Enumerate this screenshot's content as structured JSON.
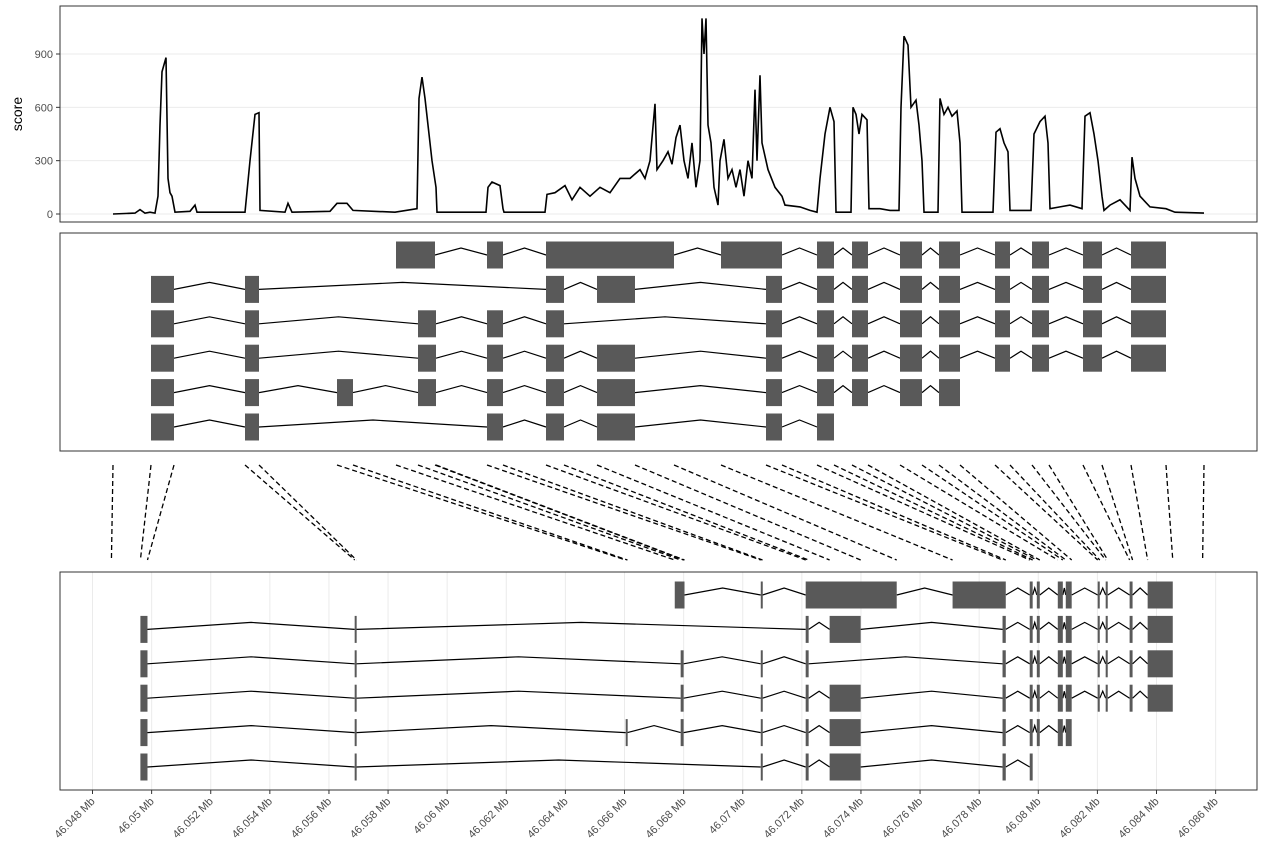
{
  "chart_data": [
    {
      "type": "line",
      "ylabel": "score",
      "color": "#000000",
      "grid": true,
      "xlim": [
        0,
        119.7
      ],
      "ylim": [
        -45,
        1170
      ],
      "yticks": [
        0,
        300,
        600,
        900
      ],
      "x": [
        5.3,
        7.5,
        8,
        8.5,
        9,
        9.5,
        9.8,
        10,
        10.2,
        10.6,
        10.8,
        11,
        11.2,
        11.5,
        13,
        13.5,
        13.7,
        18,
        18.5,
        19,
        19.5,
        19.9,
        20,
        22.5,
        22.8,
        23.2,
        27,
        27.7,
        28.7,
        29.3,
        33.5,
        35.7,
        35.9,
        36.2,
        36.5,
        37.2,
        37.6,
        37.7,
        42.6,
        42.8,
        43.2,
        44,
        44.3,
        44.4,
        48.5,
        48.7,
        49.5,
        50.5,
        51.2,
        52,
        53,
        54,
        55,
        56,
        57,
        58,
        58.5,
        59,
        59.5,
        59.7,
        60.3,
        60.8,
        61.2,
        61.6,
        62,
        62.4,
        62.8,
        63.2,
        63.6,
        64,
        64.2,
        64.4,
        64.6,
        64.8,
        65.1,
        65.4,
        65.8,
        66,
        66.4,
        66.8,
        67.2,
        67.6,
        68,
        68.4,
        68.8,
        69.2,
        69.5,
        69.7,
        70,
        70.2,
        70.8,
        71.5,
        72.2,
        72.5,
        74,
        75,
        75.7,
        76,
        76.5,
        77,
        77.4,
        77.6,
        79.1,
        79.3,
        79.6,
        79.9,
        80.2,
        80.7,
        80.9,
        82,
        83,
        83.9,
        84.1,
        84.4,
        84.8,
        85.1,
        85.6,
        85.9,
        86.2,
        86.4,
        87.8,
        88,
        88.4,
        88.8,
        89.2,
        89.7,
        90,
        90.2,
        93.3,
        93.6,
        94,
        94.4,
        94.8,
        95,
        97.1,
        97.4,
        98,
        98.5,
        98.8,
        99,
        100,
        101,
        102.2,
        102.5,
        103,
        103.4,
        103.8,
        104.2,
        104.4,
        105,
        106,
        107,
        107.2,
        107.5,
        108,
        109,
        110.6,
        111.5,
        114.4
      ],
      "values": [
        0,
        5,
        25,
        5,
        10,
        5,
        100,
        500,
        800,
        880,
        200,
        120,
        100,
        10,
        15,
        50,
        10,
        10,
        10,
        300,
        560,
        570,
        20,
        10,
        60,
        10,
        15,
        60,
        60,
        20,
        10,
        30,
        650,
        770,
        650,
        300,
        150,
        10,
        10,
        150,
        180,
        160,
        30,
        10,
        10,
        110,
        120,
        160,
        80,
        150,
        100,
        150,
        120,
        200,
        200,
        250,
        200,
        300,
        620,
        250,
        300,
        350,
        280,
        430,
        500,
        300,
        200,
        400,
        150,
        300,
        1100,
        900,
        1100,
        500,
        400,
        150,
        50,
        300,
        420,
        200,
        250,
        150,
        250,
        100,
        300,
        200,
        700,
        300,
        780,
        400,
        250,
        150,
        100,
        50,
        40,
        20,
        10,
        200,
        450,
        600,
        520,
        10,
        10,
        600,
        560,
        450,
        560,
        530,
        30,
        30,
        20,
        20,
        600,
        1000,
        950,
        600,
        640,
        500,
        300,
        10,
        10,
        650,
        560,
        600,
        550,
        580,
        400,
        10,
        10,
        460,
        480,
        400,
        350,
        20,
        20,
        450,
        520,
        550,
        400,
        30,
        40,
        50,
        30,
        550,
        570,
        450,
        300,
        100,
        20,
        50,
        80,
        20,
        320,
        200,
        100,
        40,
        30,
        10,
        5
      ]
    },
    {
      "type": "gene_model",
      "color": "#595959",
      "xlim": [
        0,
        119.7
      ],
      "transcripts": [
        [
          [
            33.6,
            37.5
          ],
          [
            42.7,
            44.3
          ],
          [
            48.6,
            61.4
          ],
          [
            66.1,
            72.2
          ],
          [
            75.7,
            77.4
          ],
          [
            79.2,
            80.8
          ],
          [
            84,
            86.2
          ],
          [
            87.9,
            90
          ],
          [
            93.5,
            95
          ],
          [
            97.2,
            98.9
          ],
          [
            102.3,
            104.2
          ],
          [
            107.1,
            110.6
          ]
        ],
        [
          [
            9.1,
            11.4
          ],
          [
            18.5,
            19.9
          ],
          [
            48.6,
            50.4
          ],
          [
            53.7,
            57.5
          ],
          [
            70.6,
            72.2
          ],
          [
            75.7,
            77.4
          ],
          [
            79.2,
            80.8
          ],
          [
            84,
            86.2
          ],
          [
            87.9,
            90
          ],
          [
            93.5,
            95
          ],
          [
            97.2,
            98.9
          ],
          [
            102.3,
            104.2
          ],
          [
            107.1,
            110.6
          ]
        ],
        [
          [
            9.1,
            11.4
          ],
          [
            18.5,
            19.9
          ],
          [
            35.8,
            37.6
          ],
          [
            42.7,
            44.3
          ],
          [
            48.6,
            50.4
          ],
          [
            70.6,
            72.2
          ],
          [
            75.7,
            77.4
          ],
          [
            79.2,
            80.8
          ],
          [
            84,
            86.2
          ],
          [
            87.9,
            90
          ],
          [
            93.5,
            95
          ],
          [
            97.2,
            98.9
          ],
          [
            102.3,
            104.2
          ],
          [
            107.1,
            110.6
          ]
        ],
        [
          [
            9.1,
            11.4
          ],
          [
            18.5,
            19.9
          ],
          [
            35.8,
            37.6
          ],
          [
            42.7,
            44.3
          ],
          [
            48.6,
            50.4
          ],
          [
            53.7,
            57.5
          ],
          [
            70.6,
            72.2
          ],
          [
            75.7,
            77.4
          ],
          [
            79.2,
            80.8
          ],
          [
            84,
            86.2
          ],
          [
            87.9,
            90
          ],
          [
            93.5,
            95
          ],
          [
            97.2,
            98.9
          ],
          [
            102.3,
            104.2
          ],
          [
            107.1,
            110.6
          ]
        ],
        [
          [
            9.1,
            11.4
          ],
          [
            18.5,
            19.9
          ],
          [
            27.7,
            29.3
          ],
          [
            35.8,
            37.6
          ],
          [
            42.7,
            44.3
          ],
          [
            48.6,
            50.4
          ],
          [
            53.7,
            57.5
          ],
          [
            70.6,
            72.2
          ],
          [
            75.7,
            77.4
          ],
          [
            79.2,
            80.8
          ],
          [
            84,
            86.2
          ],
          [
            87.9,
            90
          ]
        ],
        [
          [
            9.1,
            11.4
          ],
          [
            18.5,
            19.9
          ],
          [
            42.7,
            44.3
          ],
          [
            48.6,
            50.4
          ],
          [
            53.7,
            57.5
          ],
          [
            70.6,
            72.2
          ],
          [
            75.7,
            77.4
          ]
        ]
      ]
    },
    {
      "type": "gene_model",
      "color": "#595959",
      "grid": true,
      "xlim": [
        46.0469,
        46.0874
      ],
      "xticks": [
        {
          "value": 46.048,
          "label": "46.048 Mb"
        },
        {
          "value": 46.05,
          "label": "46.05 Mb"
        },
        {
          "value": 46.052,
          "label": "46.052 Mb"
        },
        {
          "value": 46.054,
          "label": "46.054 Mb"
        },
        {
          "value": 46.056,
          "label": "46.056 Mb"
        },
        {
          "value": 46.058,
          "label": "46.058 Mb"
        },
        {
          "value": 46.06,
          "label": "46.06 Mb"
        },
        {
          "value": 46.062,
          "label": "46.062 Mb"
        },
        {
          "value": 46.064,
          "label": "46.064 Mb"
        },
        {
          "value": 46.066,
          "label": "46.066 Mb"
        },
        {
          "value": 46.068,
          "label": "46.068 Mb"
        },
        {
          "value": 46.07,
          "label": "46.07 Mb"
        },
        {
          "value": 46.072,
          "label": "46.072 Mb"
        },
        {
          "value": 46.074,
          "label": "46.074 Mb"
        },
        {
          "value": 46.076,
          "label": "46.076 Mb"
        },
        {
          "value": 46.078,
          "label": "46.078 Mb"
        },
        {
          "value": 46.08,
          "label": "46.08 Mb"
        },
        {
          "value": 46.082,
          "label": "46.082 Mb"
        },
        {
          "value": 46.084,
          "label": "46.084 Mb"
        },
        {
          "value": 46.086,
          "label": "46.086 Mb"
        }
      ],
      "transcripts": [
        [
          [
            46.0677,
            46.06803
          ],
          [
            46.07061,
            46.07067
          ],
          [
            46.07213,
            46.07521
          ],
          [
            46.0771,
            46.0789
          ],
          [
            46.07971,
            46.07981
          ],
          [
            46.07995,
            46.08005
          ],
          [
            46.08066,
            46.08083
          ],
          [
            46.08093,
            46.08113
          ],
          [
            46.08201,
            46.08208
          ],
          [
            46.08228,
            46.08235
          ],
          [
            46.08309,
            46.08319
          ],
          [
            46.0837,
            46.08455
          ]
        ],
        [
          [
            46.04962,
            46.04986
          ],
          [
            46.05687,
            46.05693
          ],
          [
            46.07213,
            46.07223
          ],
          [
            46.07294,
            46.07399
          ],
          [
            46.07879,
            46.0789
          ],
          [
            46.07971,
            46.07981
          ],
          [
            46.07995,
            46.08005
          ],
          [
            46.08066,
            46.08083
          ],
          [
            46.08093,
            46.08113
          ],
          [
            46.08201,
            46.08208
          ],
          [
            46.08228,
            46.08235
          ],
          [
            46.08309,
            46.08319
          ],
          [
            46.0837,
            46.08455
          ]
        ],
        [
          [
            46.04962,
            46.04986
          ],
          [
            46.05687,
            46.05693
          ],
          [
            46.0679,
            46.068
          ],
          [
            46.07061,
            46.07067
          ],
          [
            46.07213,
            46.07223
          ],
          [
            46.07879,
            46.0789
          ],
          [
            46.07971,
            46.07981
          ],
          [
            46.07995,
            46.08005
          ],
          [
            46.08066,
            46.08083
          ],
          [
            46.08093,
            46.08113
          ],
          [
            46.08201,
            46.08208
          ],
          [
            46.08228,
            46.08235
          ],
          [
            46.08309,
            46.08319
          ],
          [
            46.0837,
            46.08455
          ]
        ],
        [
          [
            46.04962,
            46.04986
          ],
          [
            46.05687,
            46.05693
          ],
          [
            46.0679,
            46.068
          ],
          [
            46.07061,
            46.07067
          ],
          [
            46.07213,
            46.07223
          ],
          [
            46.07294,
            46.07399
          ],
          [
            46.07879,
            46.0789
          ],
          [
            46.07971,
            46.07981
          ],
          [
            46.07995,
            46.08005
          ],
          [
            46.08066,
            46.08083
          ],
          [
            46.08093,
            46.08113
          ],
          [
            46.08201,
            46.08208
          ],
          [
            46.08228,
            46.08235
          ],
          [
            46.08309,
            46.08319
          ],
          [
            46.0837,
            46.08455
          ]
        ],
        [
          [
            46.04962,
            46.04986
          ],
          [
            46.05687,
            46.05693
          ],
          [
            46.06604,
            46.0661
          ],
          [
            46.0679,
            46.068
          ],
          [
            46.07061,
            46.07067
          ],
          [
            46.07213,
            46.07223
          ],
          [
            46.07294,
            46.07399
          ],
          [
            46.07879,
            46.0789
          ],
          [
            46.07971,
            46.07981
          ],
          [
            46.07995,
            46.08005
          ],
          [
            46.08066,
            46.08083
          ],
          [
            46.08093,
            46.08113
          ]
        ],
        [
          [
            46.04962,
            46.04986
          ],
          [
            46.05687,
            46.05693
          ],
          [
            46.07061,
            46.07067
          ],
          [
            46.07213,
            46.07223
          ],
          [
            46.07294,
            46.07399
          ],
          [
            46.07879,
            46.0789
          ],
          [
            46.07971,
            46.07981
          ]
        ]
      ]
    }
  ],
  "links": [
    [
      5.3,
      46.04864
    ],
    [
      9.1,
      46.04962
    ],
    [
      11.4,
      46.04986
    ],
    [
      18.5,
      46.05687
    ],
    [
      19.9,
      46.05693
    ],
    [
      27.7,
      46.06604
    ],
    [
      29.3,
      46.0661
    ],
    [
      33.6,
      46.0677
    ],
    [
      35.8,
      46.0679
    ],
    [
      37.5,
      46.068
    ],
    [
      37.6,
      46.06803
    ],
    [
      42.7,
      46.07061
    ],
    [
      44.3,
      46.07067
    ],
    [
      48.6,
      46.07213
    ],
    [
      50.4,
      46.07223
    ],
    [
      53.7,
      46.07294
    ],
    [
      57.5,
      46.07399
    ],
    [
      61.4,
      46.07521
    ],
    [
      66.1,
      46.0771
    ],
    [
      70.6,
      46.07879
    ],
    [
      72.2,
      46.0789
    ],
    [
      75.7,
      46.07971
    ],
    [
      77.4,
      46.07981
    ],
    [
      79.2,
      46.07995
    ],
    [
      80.8,
      46.08005
    ],
    [
      84,
      46.08066
    ],
    [
      86.2,
      46.08083
    ],
    [
      87.9,
      46.08093
    ],
    [
      90,
      46.08113
    ],
    [
      93.5,
      46.08201
    ],
    [
      95,
      46.08208
    ],
    [
      97.2,
      46.08228
    ],
    [
      98.9,
      46.08235
    ],
    [
      102.3,
      46.08309
    ],
    [
      104.2,
      46.08319
    ],
    [
      107.1,
      46.0837
    ],
    [
      110.6,
      46.08455
    ],
    [
      114.4,
      46.08556
    ]
  ]
}
